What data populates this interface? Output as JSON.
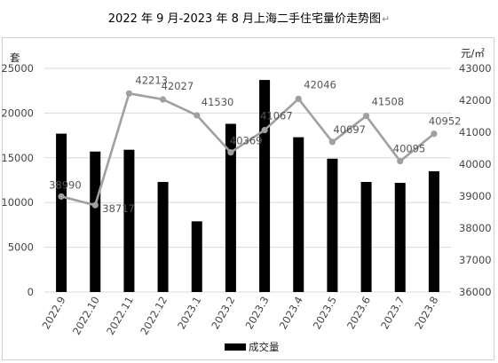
{
  "title": "2022 年 9 月-2023 年 8 月上海二手住宅量价走势图",
  "title_mark": "↵",
  "chart_data": {
    "type": "bar+line",
    "categories": [
      "2022.9",
      "2022.10",
      "2022.11",
      "2022.12",
      "2023.1",
      "2023.2",
      "2023.3",
      "2023.4",
      "2023.5",
      "2023.6",
      "2023.7",
      "2023.8"
    ],
    "series": [
      {
        "name": "成交量",
        "type": "bar",
        "axis": "left",
        "color": "#000000",
        "values": [
          17700,
          15700,
          15900,
          12300,
          7900,
          18800,
          23700,
          17300,
          14900,
          12300,
          12200,
          13500
        ]
      },
      {
        "type": "line",
        "axis": "right",
        "color": "#a0a0a0",
        "values": [
          38990,
          38717,
          42213,
          42027,
          41530,
          40369,
          41067,
          42046,
          40697,
          41508,
          40095,
          40952
        ],
        "labels": [
          "38990",
          "38717",
          "42213",
          "42027",
          "41530",
          "40369",
          "41067",
          "42046",
          "40697",
          "41508",
          "40095",
          "40952"
        ]
      }
    ],
    "y_left": {
      "label": "套",
      "min": 0,
      "max": 25000,
      "ticks": [
        0,
        5000,
        10000,
        15000,
        20000,
        25000
      ]
    },
    "y_right": {
      "label": "元/㎡",
      "min": 36000,
      "max": 43000,
      "ticks": [
        36000,
        37000,
        38000,
        39000,
        40000,
        41000,
        42000,
        43000
      ]
    },
    "grid": true,
    "legend_position": "bottom"
  }
}
